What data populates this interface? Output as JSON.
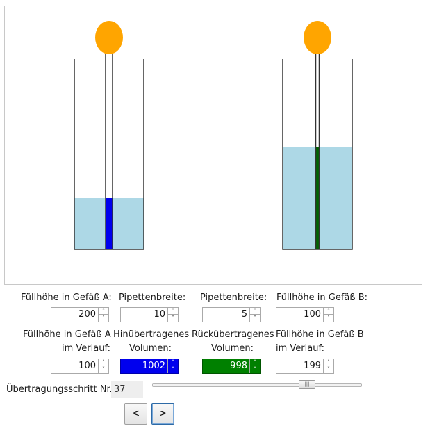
{
  "colors": {
    "liquid": "#add8e6",
    "pipette_a": "#0000ee",
    "pipette_b": "#006400",
    "bulb": "#ffa500",
    "vessel_outline": "#333333"
  },
  "simulation": {
    "vessel_a_fill_fraction": 0.27,
    "vessel_b_fill_fraction": 0.54,
    "pipette_a_fill_fraction": 0.27,
    "pipette_b_fill_fraction": 0.54
  },
  "labels": {
    "fill_a": "Füllhöhe in Gefäß A:",
    "pipette_width_1": "Pipettenbreite:",
    "pipette_width_2": "Pipettenbreite:",
    "fill_b": "Füllhöhe in Gefäß B:",
    "fill_a_course_1": "Füllhöhe in Gefäß A",
    "fill_a_course_2": "im Verlauf:",
    "forward_1": "Hinübertragenes",
    "forward_2": "Volumen:",
    "back_1": "Rückübertragenes",
    "back_2": "Volumen:",
    "fill_b_course_1": "Füllhöhe in Gefäß B",
    "fill_b_course_2": "im Verlauf:",
    "step": "Übertragungsschritt Nr.:"
  },
  "fields": {
    "fill_a": "200",
    "pipette_width_1": "10",
    "pipette_width_2": "5",
    "fill_b": "100",
    "fill_a_course": "100",
    "forward_volume": "1002",
    "back_volume": "998",
    "fill_b_course": "199",
    "step": "37"
  },
  "slider": {
    "value": 37,
    "min": 0,
    "max": 50
  },
  "buttons": {
    "prev": "<",
    "next": ">"
  },
  "spin_arrows": {
    "up": "˄",
    "down": "˅"
  }
}
